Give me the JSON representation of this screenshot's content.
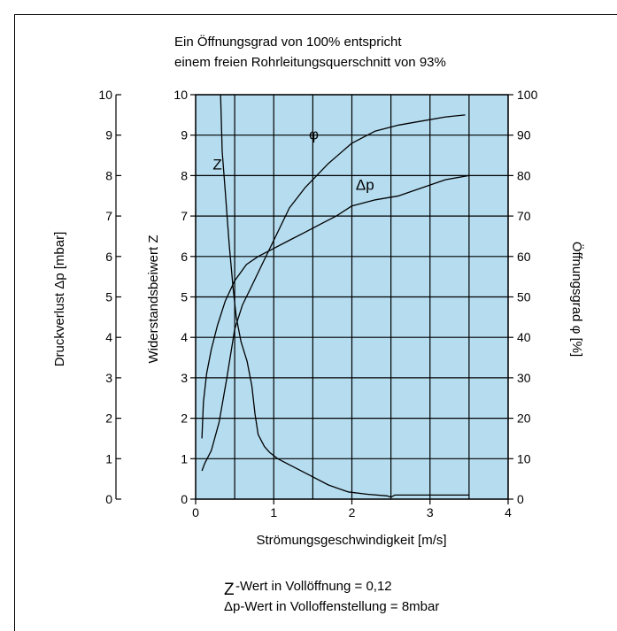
{
  "chart_data": {
    "type": "line",
    "title_lines": [
      "Ein Öffnungsgrad von 100% entspricht",
      "einem freien Rohrleitungsquerschnitt von 93%"
    ],
    "xlabel": "Strömungsgeschwindigkeit [m/s]",
    "ylabel_left_outer": "Druckverlust Δp [mbar]",
    "ylabel_left_inner": "Widerstandsbeiwert Z",
    "ylabel_right": "Öffnungsgrad φ [%]",
    "xlim": [
      0,
      4
    ],
    "ylim_left": [
      0,
      10
    ],
    "ylim_right": [
      0,
      100
    ],
    "x_ticks": [
      "0",
      "1",
      "2",
      "3",
      "4"
    ],
    "y_ticks_left": [
      "0",
      "1",
      "2",
      "3",
      "4",
      "5",
      "6",
      "7",
      "8",
      "9",
      "10"
    ],
    "y_ticks_right": [
      "0",
      "10",
      "20",
      "30",
      "40",
      "50",
      "60",
      "70",
      "80",
      "90",
      "100"
    ],
    "grid": true,
    "plot_background": "#b5dcef",
    "series": [
      {
        "name": "Z",
        "axis": "left",
        "x": [
          0.32,
          0.34,
          0.38,
          0.43,
          0.48,
          0.52,
          0.58,
          0.66,
          0.72,
          0.76,
          0.8,
          0.84,
          0.88,
          0.95,
          1.05,
          1.2,
          1.45,
          1.7,
          1.95,
          2.2,
          2.45,
          2.5,
          2.55,
          3.0,
          3.5
        ],
        "y": [
          10,
          8.6,
          7.6,
          6.3,
          5.2,
          4.5,
          3.9,
          3.4,
          2.8,
          2.1,
          1.6,
          1.45,
          1.3,
          1.15,
          1.0,
          0.85,
          0.6,
          0.35,
          0.18,
          0.12,
          0.08,
          0.05,
          0.1,
          0.1,
          0.1
        ]
      },
      {
        "name": "φ",
        "axis": "right",
        "x": [
          0.08,
          0.12,
          0.2,
          0.3,
          0.4,
          0.5,
          0.6,
          0.7,
          0.85,
          1.0,
          1.2,
          1.4,
          1.7,
          2.0,
          2.3,
          2.6,
          2.9,
          3.2,
          3.45
        ],
        "y": [
          7,
          9,
          12,
          19,
          30,
          42,
          48,
          52,
          58,
          64,
          72,
          77,
          83,
          88,
          91,
          92.5,
          93.5,
          94.5,
          95
        ]
      },
      {
        "name": "Δp",
        "axis": "left",
        "x": [
          0.08,
          0.1,
          0.14,
          0.2,
          0.28,
          0.38,
          0.5,
          0.65,
          0.8,
          1.0,
          1.2,
          1.4,
          1.6,
          1.8,
          2.0,
          2.3,
          2.6,
          2.9,
          3.2,
          3.5
        ],
        "y": [
          1.5,
          2.4,
          3.1,
          3.7,
          4.3,
          4.9,
          5.4,
          5.8,
          6.0,
          6.2,
          6.4,
          6.6,
          6.8,
          7.0,
          7.25,
          7.4,
          7.5,
          7.7,
          7.9,
          8.0
        ]
      }
    ],
    "curve_labels": [
      {
        "text": "Z",
        "x": 0.22,
        "y": 8.15
      },
      {
        "text": "φ",
        "x": 1.45,
        "y": 8.9
      },
      {
        "text": "Δp",
        "x": 2.05,
        "y": 7.65
      }
    ]
  },
  "notes": {
    "line1_symbol": "Z",
    "line1_text": "-Wert in Vollöffnung = 0,12",
    "line2_text": "Δp-Wert in Volloffenstellung = 8mbar"
  }
}
